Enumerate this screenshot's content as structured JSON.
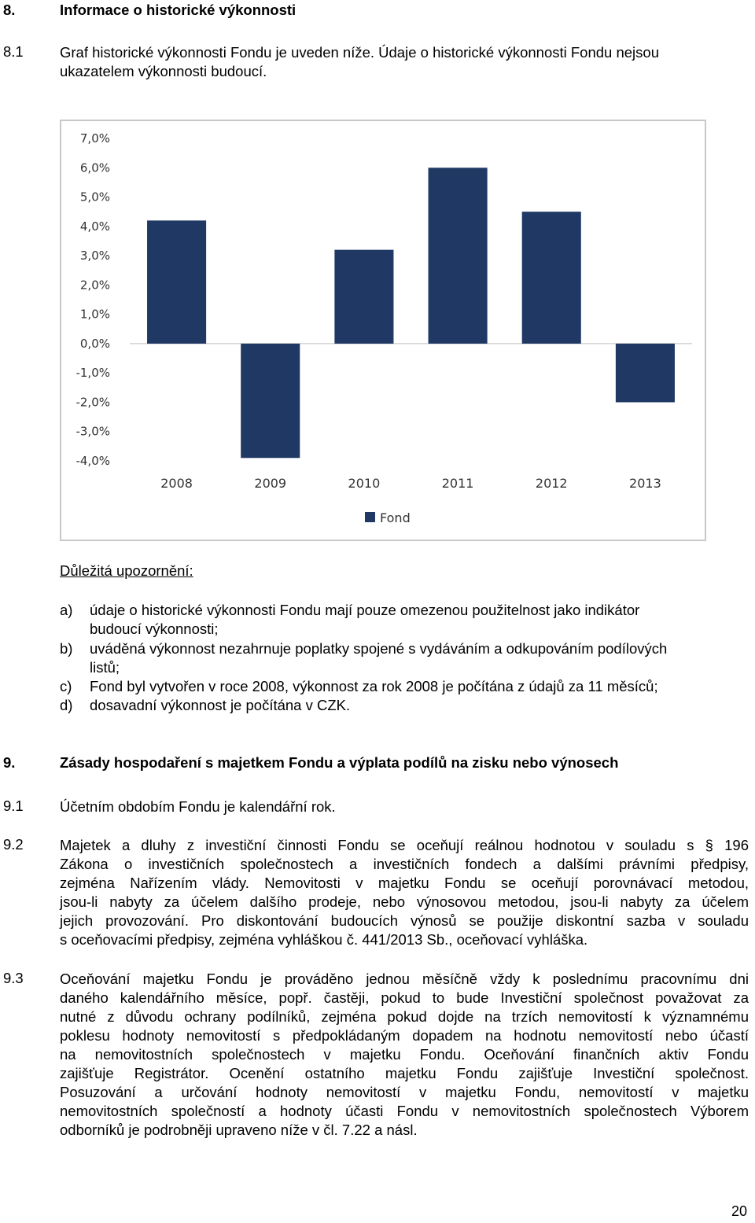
{
  "section8": {
    "number": "8.",
    "title": "Informace o historické výkonnosti",
    "p81_num": "8.1",
    "p81_line1": "Graf historické výkonnosti Fondu je uveden níže. Údaje o historické výkonnosti Fondu nejsou",
    "p81_line2": "ukazatelem výkonnosti budoucí."
  },
  "chart_data": {
    "type": "bar",
    "categories": [
      "2008",
      "2009",
      "2010",
      "2011",
      "2012",
      "2013"
    ],
    "series": [
      {
        "name": "Fond",
        "values": [
          4.2,
          -3.9,
          3.2,
          6.0,
          4.5,
          -2.0
        ]
      }
    ],
    "ylim": [
      -4.0,
      7.0
    ],
    "yticks": [
      7.0,
      6.0,
      5.0,
      4.0,
      3.0,
      2.0,
      1.0,
      0.0,
      -1.0,
      -2.0,
      -3.0,
      -4.0
    ],
    "ytick_labels": [
      "7,0%",
      "6,0%",
      "5,0%",
      "4,0%",
      "3,0%",
      "2,0%",
      "1,0%",
      "0,0%",
      "-1,0%",
      "-2,0%",
      "-3,0%",
      "-4,0%"
    ],
    "legend": "bottom",
    "grid": false,
    "bar_color": "#1f3864"
  },
  "notice": {
    "heading": "Důležitá upozornění:",
    "items": [
      {
        "label": "a)",
        "line1": "údaje o historické výkonnosti Fondu mají pouze omezenou použitelnost jako indikátor",
        "line2": "budoucí výkonnosti;"
      },
      {
        "label": "b)",
        "line1": "uváděná výkonnost nezahrnuje poplatky spojené s vydáváním a odkupováním podílových",
        "line2": "listů;"
      },
      {
        "label": "c)",
        "line1": "Fond byl vytvořen v roce 2008, výkonnost za rok 2008 je počítána z údajů za 11 měsíců;"
      },
      {
        "label": "d)",
        "line1": "dosavadní výkonnost je počítána v CZK."
      }
    ]
  },
  "section9": {
    "number": "9.",
    "title": "Zásady hospodaření s majetkem Fondu a výplata podílů na zisku nebo výnosech",
    "p91_num": "9.1",
    "p91": "Účetním obdobím Fondu je kalendářní rok.",
    "p92_num": "9.2",
    "p92_lines": [
      "Majetek a dluhy z investiční činnosti Fondu se oceňují reálnou hodnotou v souladu s § 196",
      "Zákona o investičních společnostech a investičních fondech a dalšími právními předpisy,",
      "zejména Nařízením vlády. Nemovitosti v majetku Fondu se oceňují porovnávací metodou,",
      "jsou-li nabyty za účelem dalšího prodeje, nebo výnosovou metodou, jsou-li nabyty za účelem",
      "jejich provozování. Pro diskontování budoucích výnosů se použije diskontní sazba v souladu",
      "s oceňovacími předpisy, zejména vyhláškou č. 441/2013 Sb., oceňovací vyhláška."
    ],
    "p93_num": "9.3",
    "p93_lines": [
      "Oceňování majetku Fondu je prováděno jednou měsíčně vždy k poslednímu pracovnímu dni",
      "daného kalendářního měsíce, popř. častěji, pokud to bude Investiční společnost považovat za",
      "nutné z důvodu ochrany podílníků, zejména pokud dojde na trzích nemovitostí k významnému",
      "poklesu hodnoty nemovitostí s předpokládaným dopadem na hodnotu nemovitostí nebo účastí",
      "na nemovitostních společnostech v majetku Fondu. Oceňování finančních aktiv Fondu",
      "zajišťuje Registrátor. Ocenění ostatního majetku Fondu zajišťuje Investiční společnost.",
      "Posuzování a určování hodnoty nemovitostí v majetku Fondu, nemovitostí v majetku",
      "nemovitostních společností a hodnoty účasti Fondu v nemovitostních společnostech Výborem",
      "odborníků je podrobněji upraveno níže v čl. 7.22 a násl."
    ]
  },
  "page_number": "20"
}
